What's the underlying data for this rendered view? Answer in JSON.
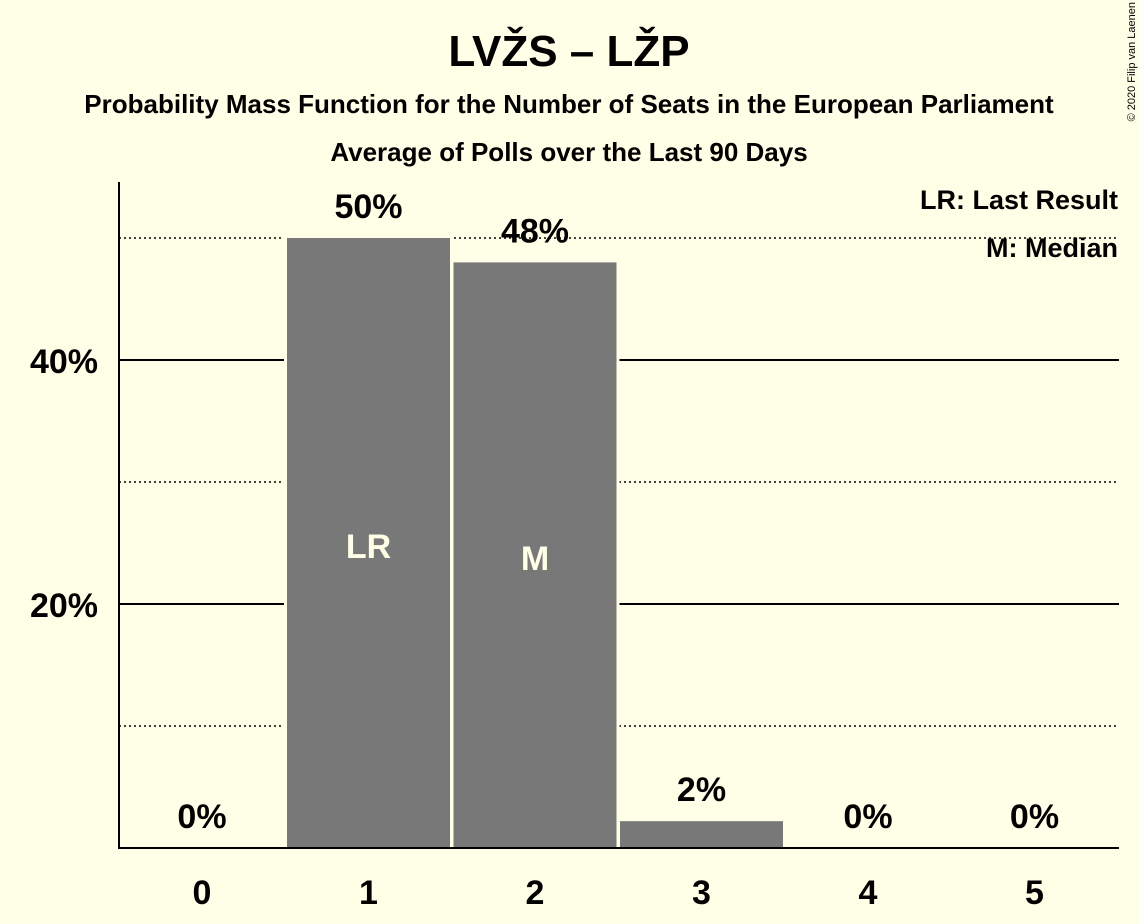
{
  "chart_data": {
    "type": "bar",
    "title": "LVŽS – LŽP",
    "subtitle": "Probability Mass Function for the Number of Seats in the European Parliament",
    "subtitle2": "Average of Polls over the Last 90 Days",
    "categories": [
      "0",
      "1",
      "2",
      "3",
      "4",
      "5"
    ],
    "values": [
      0,
      50,
      48,
      2.2,
      0,
      0
    ],
    "value_labels": [
      "0%",
      "50%",
      "48%",
      "2%",
      "0%",
      "0%"
    ],
    "inbar_labels": [
      "",
      "LR",
      "M",
      "",
      "",
      ""
    ],
    "ylim": [
      0,
      55
    ],
    "yticks_major": [
      {
        "value": 20,
        "label": "20%"
      },
      {
        "value": 40,
        "label": "40%"
      }
    ],
    "yticks_minor": [
      10,
      30,
      50
    ],
    "grid": true,
    "bar_color": "#787878",
    "background": "#FFFEE6",
    "legend_position": "top-right",
    "legend": [
      "LR: Last Result",
      "M: Median"
    ],
    "copyright": "© 2020 Filip van Laenen"
  }
}
